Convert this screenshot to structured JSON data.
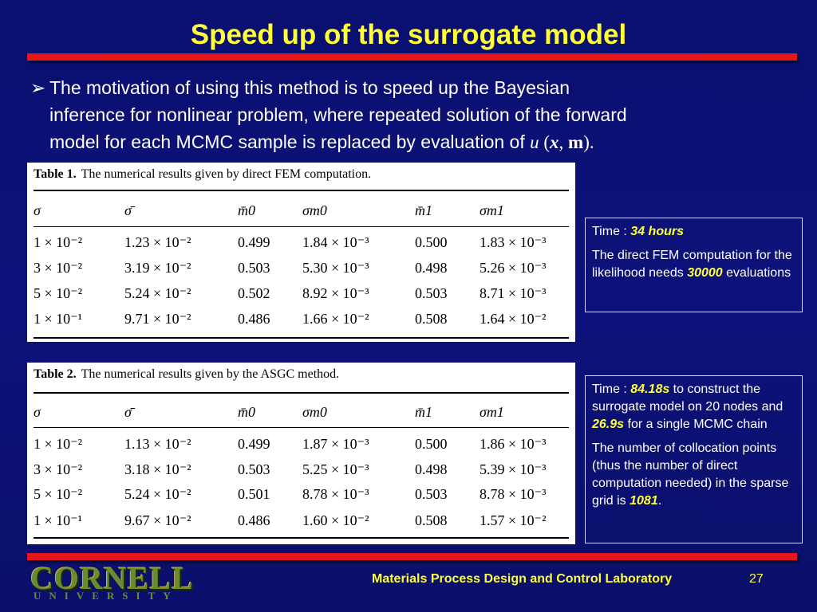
{
  "slide": {
    "title": "Speed up of the surrogate model",
    "bullet": {
      "line1": "The motivation of using this method is to speed up the Bayesian",
      "line2": "inference for nonlinear problem, where repeated solution of the forward",
      "line3_text": "model for each MCMC sample is replaced by evaluation of ",
      "line3_math_u": "u",
      "line3_math_open": " (",
      "line3_math_x": "x",
      "line3_math_sep": ", ",
      "line3_math_m": "m",
      "line3_math_close": ")."
    },
    "table1": {
      "label": "Table 1.",
      "caption": "The numerical results given by direct FEM computation.",
      "headers": [
        "σ",
        "σ̄",
        "m̄0",
        "σm0",
        "m̄1",
        "σm1"
      ],
      "rows": [
        [
          "1 × 10⁻²",
          "1.23 × 10⁻²",
          "0.499",
          "1.84 × 10⁻³",
          "0.500",
          "1.83 × 10⁻³"
        ],
        [
          "3 × 10⁻²",
          "3.19 × 10⁻²",
          "0.503",
          "5.30 × 10⁻³",
          "0.498",
          "5.26 × 10⁻³"
        ],
        [
          "5 × 10⁻²",
          "5.24 × 10⁻²",
          "0.502",
          "8.92 × 10⁻³",
          "0.503",
          "8.71 × 10⁻³"
        ],
        [
          "1 × 10⁻¹",
          "9.71 × 10⁻²",
          "0.486",
          "1.66 × 10⁻²",
          "0.508",
          "1.64 × 10⁻²"
        ]
      ]
    },
    "table2": {
      "label": "Table 2.",
      "caption": "The numerical results given by the ASGC method.",
      "headers": [
        "σ",
        "σ̄",
        "m̄0",
        "σm0",
        "m̄1",
        "σm1"
      ],
      "rows": [
        [
          "1 × 10⁻²",
          "1.13 × 10⁻²",
          "0.499",
          "1.87 × 10⁻³",
          "0.500",
          "1.86 × 10⁻³"
        ],
        [
          "3 × 10⁻²",
          "3.18 × 10⁻²",
          "0.503",
          "5.25 × 10⁻³",
          "0.498",
          "5.39 × 10⁻³"
        ],
        [
          "5 × 10⁻²",
          "5.24 × 10⁻²",
          "0.501",
          "8.78 × 10⁻³",
          "0.503",
          "8.78 × 10⁻³"
        ],
        [
          "1 × 10⁻¹",
          "9.67 × 10⁻²",
          "0.486",
          "1.60 × 10⁻²",
          "0.508",
          "1.57 × 10⁻²"
        ]
      ]
    },
    "box1": {
      "time_label": "Time : ",
      "time_value": "34 hours",
      "para_text": "The direct FEM computation for the likelihood needs ",
      "para_value": "30000",
      "para_end": " evaluations"
    },
    "box2": {
      "time_label": "Time : ",
      "time_value1": "84.18s",
      "time_mid": " to construct the surrogate model on 20 nodes and ",
      "time_value2": "26.9s",
      "time_end": " for a single MCMC chain",
      "para_text": "The number of collocation points (thus the number of direct computation needed) in the sparse grid is ",
      "para_value": "1081",
      "para_end": "."
    },
    "footer": {
      "lab": "Materials Process Design and Control Laboratory",
      "page": "27",
      "logo_main": "CORNELL",
      "logo_sub": "UNIVERSITY"
    },
    "colors": {
      "background": "#0c127a",
      "title": "#ffff33",
      "accent_bar": "#e8151a",
      "highlight": "#ffff33"
    }
  }
}
